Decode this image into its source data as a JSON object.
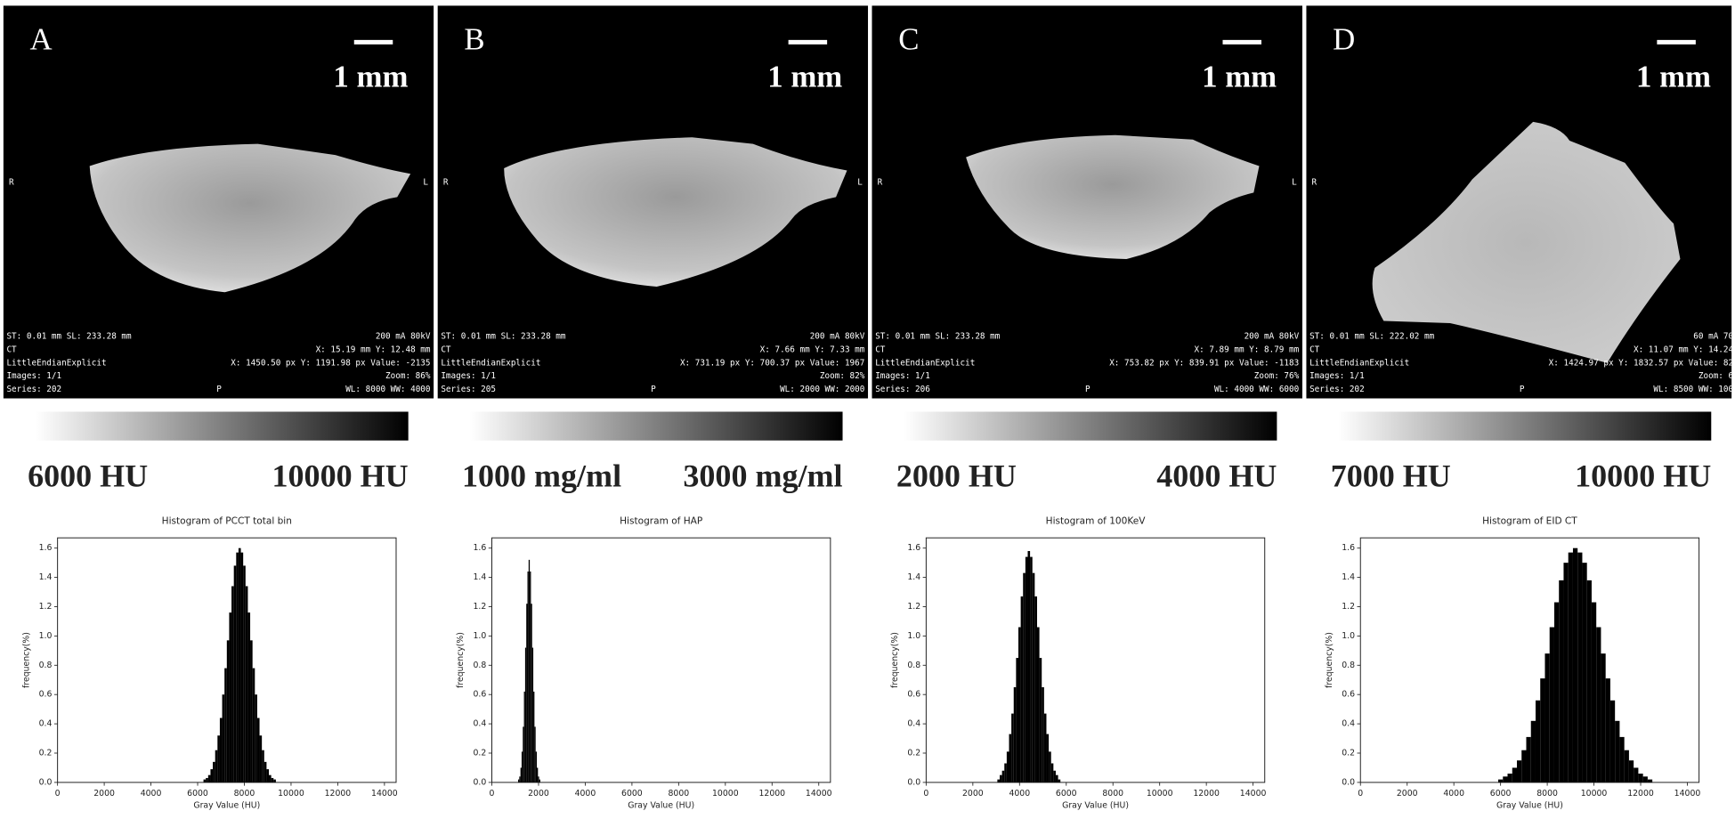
{
  "panels": [
    {
      "letter": "A",
      "scale_label": "1 mm",
      "orientation": [
        "R",
        "L"
      ],
      "overlay_left": [
        "ST: 0.01 mm SL: 233.28 mm",
        "CT",
        "LittleEndianExplicit",
        "Images: 1/1",
        "Series: 202"
      ],
      "overlay_right": [
        "200 mA 80kV",
        "X: 15.19 mm Y: 12.48 mm",
        "X: 1450.50 px Y: 1191.98 px Value: -2135",
        "Zoom: 86%",
        "WL: 8000 WW: 4000"
      ],
      "bottom_center": "P",
      "colorbar_labels": [
        "6000 HU",
        "10000 HU"
      ]
    },
    {
      "letter": "B",
      "scale_label": "1 mm",
      "orientation": [
        "R",
        "L"
      ],
      "overlay_left": [
        "ST: 0.01 mm SL: 233.28 mm",
        "CT",
        "LittleEndianExplicit",
        "Images: 1/1",
        "Series: 205"
      ],
      "overlay_right": [
        "200 mA 80kV",
        "X: 7.66 mm Y: 7.33 mm",
        "X: 731.19 px Y: 700.37 px Value: 1967",
        "Zoom: 82%",
        "WL: 2000 WW: 2000"
      ],
      "bottom_center": "P",
      "colorbar_labels": [
        "1000 mg/ml",
        "3000 mg/ml"
      ]
    },
    {
      "letter": "C",
      "scale_label": "1 mm",
      "orientation": [
        "R",
        "L"
      ],
      "overlay_left": [
        "ST: 0.01 mm SL: 233.28 mm",
        "CT",
        "LittleEndianExplicit",
        "Images: 1/1",
        "Series: 206"
      ],
      "overlay_right": [
        "200 mA 80kV",
        "X: 7.89 mm Y: 8.79 mm",
        "X: 753.82 px Y: 839.91 px Value: -1183",
        "Zoom: 76%",
        "WL: 4000 WW: 6000"
      ],
      "bottom_center": "P",
      "colorbar_labels": [
        "2000 HU",
        "4000 HU"
      ]
    },
    {
      "letter": "D",
      "scale_label": "1 mm",
      "orientation": [
        "R"
      ],
      "overlay_left": [
        "ST: 0.01 mm SL: 222.02 mm",
        "CT",
        "LittleEndianExplicit",
        "Images: 1/1",
        "Series: 202"
      ],
      "overlay_right": [
        "60 mA 70",
        "X: 11.07 mm Y: 14.24",
        "X: 1424.97 px Y: 1832.57 px Value: 82",
        "Zoom: 6",
        "WL: 8500 WW: 100"
      ],
      "bottom_center": "P",
      "colorbar_labels": [
        "7000 HU",
        "10000 HU"
      ]
    }
  ],
  "chart_data": [
    {
      "type": "histogram",
      "title": "Histogram of PCCT total bin",
      "xlabel": "Gray Value (HU)",
      "ylabel": "frequency(%)",
      "color": "#000000",
      "bins": [
        6250,
        6350,
        6450,
        6550,
        6650,
        6750,
        6850,
        6950,
        7050,
        7150,
        7250,
        7350,
        7450,
        7550,
        7650,
        7750,
        7850,
        7950,
        8050,
        8150,
        8250,
        8350,
        8450,
        8550,
        8650,
        8750,
        8850,
        8950,
        9050,
        9150,
        9250,
        9350
      ],
      "values": [
        0.02,
        0.03,
        0.05,
        0.09,
        0.14,
        0.22,
        0.32,
        0.44,
        0.6,
        0.78,
        0.97,
        1.16,
        1.34,
        1.48,
        1.57,
        1.6,
        1.57,
        1.48,
        1.34,
        1.16,
        0.97,
        0.78,
        0.6,
        0.44,
        0.32,
        0.22,
        0.14,
        0.09,
        0.05,
        0.03,
        0.02
      ],
      "xlim": [
        0,
        14500
      ],
      "ylim": [
        0,
        1.67
      ],
      "xticks": [
        0,
        2000,
        4000,
        6000,
        8000,
        10000,
        12000,
        14000
      ],
      "yticks": [
        {
          "value": 0,
          "label": "0.0"
        },
        0.2,
        0.4,
        0.6,
        0.8,
        {
          "value": 1,
          "label": "1.0"
        },
        1.2,
        1.4,
        1.6
      ]
    },
    {
      "type": "histogram",
      "title": "Histogram of HAP",
      "xlabel": "Gray Value (HU)",
      "ylabel": "frequency(%)",
      "color": "#000000",
      "bins": [
        1125,
        1175,
        1225,
        1275,
        1325,
        1375,
        1425,
        1475,
        1525,
        1575,
        1625,
        1675,
        1725,
        1775,
        1825,
        1875,
        1925,
        1975,
        2025,
        2075
      ],
      "values": [
        0.02,
        0.04,
        0.1,
        0.21,
        0.38,
        0.62,
        0.92,
        1.22,
        1.44,
        1.52,
        1.44,
        1.22,
        0.92,
        0.62,
        0.38,
        0.21,
        0.1,
        0.04,
        0.02
      ],
      "xlim": [
        0,
        14500
      ],
      "ylim": [
        0,
        1.67
      ],
      "xticks": [
        0,
        2000,
        4000,
        6000,
        8000,
        10000,
        12000,
        14000
      ],
      "yticks": [
        {
          "value": 0,
          "label": "0.0"
        },
        0.2,
        0.4,
        0.6,
        0.8,
        {
          "value": 1,
          "label": "1.0"
        },
        1.2,
        1.4,
        1.6
      ]
    },
    {
      "type": "histogram",
      "title": "Histogram of 100KeV",
      "xlabel": "Gray Value (HU)",
      "ylabel": "frequency(%)",
      "color": "#000000",
      "bins": [
        3050,
        3150,
        3250,
        3350,
        3450,
        3550,
        3650,
        3750,
        3850,
        3950,
        4050,
        4150,
        4250,
        4350,
        4450,
        4550,
        4650,
        4750,
        4850,
        4950,
        5050,
        5150,
        5250,
        5350,
        5450,
        5550,
        5650,
        5750
      ],
      "values": [
        0.02,
        0.05,
        0.08,
        0.13,
        0.21,
        0.33,
        0.47,
        0.65,
        0.85,
        1.06,
        1.27,
        1.43,
        1.54,
        1.58,
        1.54,
        1.43,
        1.27,
        1.06,
        0.85,
        0.65,
        0.47,
        0.33,
        0.21,
        0.13,
        0.08,
        0.05,
        0.02
      ],
      "xlim": [
        0,
        14500
      ],
      "ylim": [
        0,
        1.67
      ],
      "xticks": [
        0,
        2000,
        4000,
        6000,
        8000,
        10000,
        12000,
        14000
      ],
      "yticks": [
        {
          "value": 0,
          "label": "0.0"
        },
        0.2,
        0.4,
        0.6,
        0.8,
        {
          "value": 1,
          "label": "1.0"
        },
        1.2,
        1.4,
        1.6
      ]
    },
    {
      "type": "histogram",
      "title": "Histogram of EID CT",
      "xlabel": "Gray Value (HU)",
      "ylabel": "frequency(%)",
      "color": "#000000",
      "bins": [
        5900,
        6100,
        6300,
        6500,
        6700,
        6900,
        7100,
        7300,
        7500,
        7700,
        7900,
        8100,
        8300,
        8500,
        8700,
        8900,
        9100,
        9300,
        9500,
        9700,
        9900,
        10100,
        10300,
        10500,
        10700,
        10900,
        11100,
        11300,
        11500,
        11700,
        11900,
        12100,
        12300,
        12500
      ],
      "values": [
        0.02,
        0.04,
        0.06,
        0.1,
        0.15,
        0.22,
        0.31,
        0.42,
        0.56,
        0.71,
        0.88,
        1.06,
        1.23,
        1.38,
        1.5,
        1.57,
        1.6,
        1.57,
        1.5,
        1.38,
        1.23,
        1.06,
        0.88,
        0.71,
        0.56,
        0.42,
        0.31,
        0.22,
        0.15,
        0.1,
        0.06,
        0.04,
        0.02
      ],
      "xlim": [
        0,
        14500
      ],
      "ylim": [
        0,
        1.67
      ],
      "xticks": [
        0,
        2000,
        4000,
        6000,
        8000,
        10000,
        12000,
        14000
      ],
      "yticks": [
        {
          "value": 0,
          "label": "0.0"
        },
        0.2,
        0.4,
        0.6,
        0.8,
        {
          "value": 1,
          "label": "1.0"
        },
        1.2,
        1.4,
        1.6
      ]
    }
  ]
}
